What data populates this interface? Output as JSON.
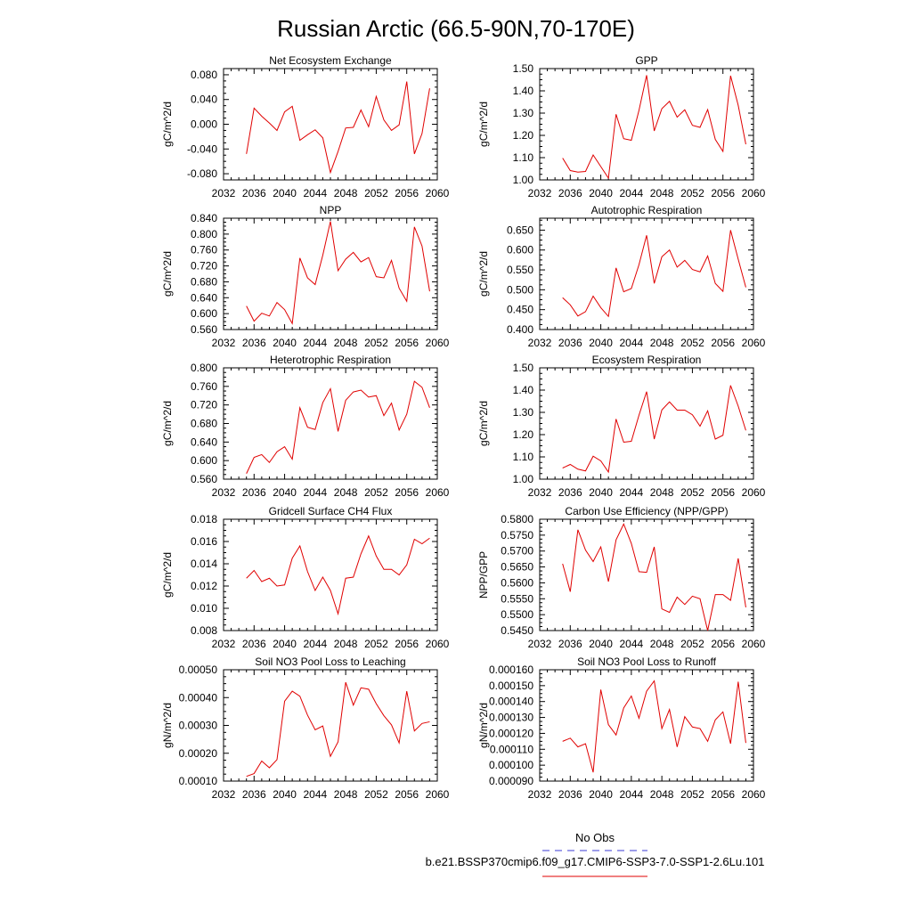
{
  "title": "Russian Arctic (66.5-90N,70-170E)",
  "legend": {
    "obs_label": "No Obs",
    "model_label": "b.e21.BSSP370cmip6.f09_g17.CMIP6-SSP3-7.0-SSP1-2.6Lu.101",
    "obs_color": "#3b3bd6",
    "model_color": "#e00000"
  },
  "chart_data": [
    {
      "type": "line",
      "title": "Net Ecosystem Exchange",
      "ylabel": "gC/m^2/d",
      "xlim": [
        2032,
        2060
      ],
      "xticks": [
        "2032",
        "2036",
        "2040",
        "2044",
        "2048",
        "2052",
        "2056",
        "2060"
      ],
      "ylim": [
        -0.09,
        0.09
      ],
      "yticks": [
        "-0.080",
        "-0.040",
        "0.000",
        "0.040",
        "0.080"
      ],
      "x": [
        2035,
        2036,
        2037,
        2038,
        2039,
        2040,
        2041,
        2042,
        2043,
        2044,
        2045,
        2046,
        2047,
        2048,
        2049,
        2050,
        2051,
        2052,
        2053,
        2054,
        2055,
        2056,
        2057,
        2058,
        2059
      ],
      "series": [
        {
          "values": [
            -0.048,
            0.026,
            0.013,
            0.002,
            -0.01,
            0.02,
            0.029,
            -0.026,
            -0.017,
            -0.009,
            -0.022,
            -0.078,
            -0.044,
            -0.006,
            -0.005,
            0.023,
            -0.004,
            0.045,
            0.007,
            -0.01,
            -0.001,
            0.069,
            -0.048,
            -0.015,
            0.058
          ]
        }
      ]
    },
    {
      "type": "line",
      "title": "GPP",
      "ylabel": "gC/m^2/d",
      "xlim": [
        2032,
        2060
      ],
      "xticks": [
        "2032",
        "2036",
        "2040",
        "2044",
        "2048",
        "2052",
        "2056",
        "2060"
      ],
      "ylim": [
        1.0,
        1.5
      ],
      "yticks": [
        "1.00",
        "1.10",
        "1.20",
        "1.30",
        "1.40",
        "1.50"
      ],
      "x": [
        2035,
        2036,
        2037,
        2038,
        2039,
        2040,
        2041,
        2042,
        2043,
        2044,
        2045,
        2046,
        2047,
        2048,
        2049,
        2050,
        2051,
        2052,
        2053,
        2054,
        2055,
        2056,
        2057,
        2058,
        2059
      ],
      "series": [
        {
          "values": [
            1.098,
            1.042,
            1.035,
            1.038,
            1.112,
            1.06,
            1.008,
            1.295,
            1.185,
            1.178,
            1.312,
            1.47,
            1.22,
            1.32,
            1.353,
            1.282,
            1.315,
            1.245,
            1.236,
            1.316,
            1.182,
            1.128,
            1.468,
            1.335,
            1.16
          ]
        }
      ]
    },
    {
      "type": "line",
      "title": "NPP",
      "ylabel": "gC/m^2/d",
      "xlim": [
        2032,
        2060
      ],
      "xticks": [
        "2032",
        "2036",
        "2040",
        "2044",
        "2048",
        "2052",
        "2056",
        "2060"
      ],
      "ylim": [
        0.56,
        0.84
      ],
      "yticks": [
        "0.560",
        "0.600",
        "0.640",
        "0.680",
        "0.720",
        "0.760",
        "0.800",
        "0.840"
      ],
      "x": [
        2035,
        2036,
        2037,
        2038,
        2039,
        2040,
        2041,
        2042,
        2043,
        2044,
        2045,
        2046,
        2047,
        2048,
        2049,
        2050,
        2051,
        2052,
        2053,
        2054,
        2055,
        2056,
        2057,
        2058,
        2059
      ],
      "series": [
        {
          "values": [
            0.619,
            0.581,
            0.601,
            0.594,
            0.628,
            0.61,
            0.575,
            0.74,
            0.69,
            0.673,
            0.747,
            0.832,
            0.708,
            0.737,
            0.754,
            0.73,
            0.741,
            0.693,
            0.69,
            0.734,
            0.664,
            0.631,
            0.818,
            0.77,
            0.656
          ]
        }
      ]
    },
    {
      "type": "line",
      "title": "Autotrophic Respiration",
      "ylabel": "gC/m^2/d",
      "xlim": [
        2032,
        2060
      ],
      "xticks": [
        "2032",
        "2036",
        "2040",
        "2044",
        "2048",
        "2052",
        "2056",
        "2060"
      ],
      "ylim": [
        0.4,
        0.68
      ],
      "yticks": [
        "0.400",
        "0.450",
        "0.500",
        "0.550",
        "0.600",
        "0.650"
      ],
      "x": [
        2035,
        2036,
        2037,
        2038,
        2039,
        2040,
        2041,
        2042,
        2043,
        2044,
        2045,
        2046,
        2047,
        2048,
        2049,
        2050,
        2051,
        2052,
        2053,
        2054,
        2055,
        2056,
        2057,
        2058,
        2059
      ],
      "series": [
        {
          "values": [
            0.48,
            0.462,
            0.434,
            0.445,
            0.484,
            0.455,
            0.433,
            0.555,
            0.495,
            0.503,
            0.563,
            0.637,
            0.516,
            0.583,
            0.6,
            0.557,
            0.574,
            0.551,
            0.545,
            0.585,
            0.516,
            0.496,
            0.65,
            0.577,
            0.506
          ]
        }
      ]
    },
    {
      "type": "line",
      "title": "Heterotrophic Respiration",
      "ylabel": "gC/m^2/d",
      "xlim": [
        2032,
        2060
      ],
      "xticks": [
        "2032",
        "2036",
        "2040",
        "2044",
        "2048",
        "2052",
        "2056",
        "2060"
      ],
      "ylim": [
        0.56,
        0.8
      ],
      "yticks": [
        "0.560",
        "0.600",
        "0.640",
        "0.680",
        "0.720",
        "0.760",
        "0.800"
      ],
      "x": [
        2035,
        2036,
        2037,
        2038,
        2039,
        2040,
        2041,
        2042,
        2043,
        2044,
        2045,
        2046,
        2047,
        2048,
        2049,
        2050,
        2051,
        2052,
        2053,
        2054,
        2055,
        2056,
        2057,
        2058,
        2059
      ],
      "series": [
        {
          "values": [
            0.572,
            0.607,
            0.613,
            0.596,
            0.619,
            0.63,
            0.603,
            0.714,
            0.672,
            0.667,
            0.725,
            0.755,
            0.663,
            0.73,
            0.748,
            0.752,
            0.737,
            0.74,
            0.697,
            0.724,
            0.666,
            0.7,
            0.771,
            0.758,
            0.714
          ]
        }
      ]
    },
    {
      "type": "line",
      "title": "Ecosystem Respiration",
      "ylabel": "gC/m^2/d",
      "xlim": [
        2032,
        2060
      ],
      "xticks": [
        "2032",
        "2036",
        "2040",
        "2044",
        "2048",
        "2052",
        "2056",
        "2060"
      ],
      "ylim": [
        1.0,
        1.5
      ],
      "yticks": [
        "1.00",
        "1.10",
        "1.20",
        "1.30",
        "1.40",
        "1.50"
      ],
      "x": [
        2035,
        2036,
        2037,
        2038,
        2039,
        2040,
        2041,
        2042,
        2043,
        2044,
        2045,
        2046,
        2047,
        2048,
        2049,
        2050,
        2051,
        2052,
        2053,
        2054,
        2055,
        2056,
        2057,
        2058,
        2059
      ],
      "series": [
        {
          "values": [
            1.05,
            1.066,
            1.045,
            1.037,
            1.103,
            1.082,
            1.032,
            1.27,
            1.166,
            1.17,
            1.287,
            1.393,
            1.18,
            1.311,
            1.347,
            1.31,
            1.31,
            1.289,
            1.238,
            1.307,
            1.18,
            1.197,
            1.421,
            1.328,
            1.219
          ]
        }
      ]
    },
    {
      "type": "line",
      "title": "Gridcell Surface CH4 Flux",
      "ylabel": "gC/m^2/d",
      "xlim": [
        2032,
        2060
      ],
      "xticks": [
        "2032",
        "2036",
        "2040",
        "2044",
        "2048",
        "2052",
        "2056",
        "2060"
      ],
      "ylim": [
        0.008,
        0.018
      ],
      "yticks": [
        "0.008",
        "0.010",
        "0.012",
        "0.014",
        "0.016",
        "0.018"
      ],
      "x": [
        2035,
        2036,
        2037,
        2038,
        2039,
        2040,
        2041,
        2042,
        2043,
        2044,
        2045,
        2046,
        2047,
        2048,
        2049,
        2050,
        2051,
        2052,
        2053,
        2054,
        2055,
        2056,
        2057,
        2058,
        2059
      ],
      "series": [
        {
          "values": [
            0.0127,
            0.0134,
            0.0124,
            0.0127,
            0.012,
            0.0121,
            0.0145,
            0.0156,
            0.0133,
            0.0116,
            0.0128,
            0.0116,
            0.0095,
            0.0127,
            0.0128,
            0.0149,
            0.0165,
            0.0147,
            0.0135,
            0.0135,
            0.013,
            0.0139,
            0.0162,
            0.0158,
            0.0163
          ]
        }
      ]
    },
    {
      "type": "line",
      "title": "Carbon Use Efficiency (NPP/GPP)",
      "ylabel": "NPP/GPP",
      "xlim": [
        2032,
        2060
      ],
      "xticks": [
        "2032",
        "2036",
        "2040",
        "2044",
        "2048",
        "2052",
        "2056",
        "2060"
      ],
      "ylim": [
        0.545,
        0.58
      ],
      "yticks": [
        "0.5450",
        "0.5500",
        "0.5550",
        "0.5600",
        "0.5650",
        "0.5700",
        "0.5750",
        "0.5800"
      ],
      "x": [
        2035,
        2036,
        2037,
        2038,
        2039,
        2040,
        2041,
        2042,
        2043,
        2044,
        2045,
        2046,
        2047,
        2048,
        2049,
        2050,
        2051,
        2052,
        2053,
        2054,
        2055,
        2056,
        2057,
        2058,
        2059
      ],
      "series": [
        {
          "values": [
            0.566,
            0.5572,
            0.5767,
            0.5703,
            0.5667,
            0.5713,
            0.5604,
            0.5735,
            0.5785,
            0.5724,
            0.5635,
            0.5633,
            0.5713,
            0.5518,
            0.5507,
            0.5555,
            0.5532,
            0.5558,
            0.555,
            0.545,
            0.5563,
            0.5563,
            0.5545,
            0.5677,
            0.5523
          ]
        }
      ]
    },
    {
      "type": "line",
      "title": "Soil NO3 Pool Loss to Leaching",
      "ylabel": "gN/m^2/d",
      "xlim": [
        2032,
        2060
      ],
      "xticks": [
        "2032",
        "2036",
        "2040",
        "2044",
        "2048",
        "2052",
        "2056",
        "2060"
      ],
      "ylim": [
        0.0001,
        0.0005
      ],
      "yticks": [
        "0.00010",
        "0.00020",
        "0.00030",
        "0.00040",
        "0.00050"
      ],
      "x": [
        2035,
        2036,
        2037,
        2038,
        2039,
        2040,
        2041,
        2042,
        2043,
        2044,
        2045,
        2046,
        2047,
        2048,
        2049,
        2050,
        2051,
        2052,
        2053,
        2054,
        2055,
        2056,
        2057,
        2058,
        2059
      ],
      "series": [
        {
          "values": [
            0.000117,
            0.000127,
            0.000172,
            0.000148,
            0.000177,
            0.000387,
            0.000423,
            0.000405,
            0.000337,
            0.000284,
            0.000298,
            0.000189,
            0.000241,
            0.000455,
            0.000373,
            0.000435,
            0.00043,
            0.000378,
            0.000335,
            0.000302,
            0.000237,
            0.000423,
            0.00028,
            0.000307,
            0.000313
          ]
        }
      ]
    },
    {
      "type": "line",
      "title": "Soil NO3 Pool Loss to Runoff",
      "ylabel": "gN/m^2/d",
      "xlim": [
        2032,
        2060
      ],
      "xticks": [
        "2032",
        "2036",
        "2040",
        "2044",
        "2048",
        "2052",
        "2056",
        "2060"
      ],
      "ylim": [
        9e-05,
        0.00016
      ],
      "yticks": [
        "0.000090",
        "0.000100",
        "0.000110",
        "0.000120",
        "0.000130",
        "0.000140",
        "0.000150",
        "0.000160"
      ],
      "x": [
        2035,
        2036,
        2037,
        2038,
        2039,
        2040,
        2041,
        2042,
        2043,
        2044,
        2045,
        2046,
        2047,
        2048,
        2049,
        2050,
        2051,
        2052,
        2053,
        2054,
        2055,
        2056,
        2057,
        2058,
        2059
      ],
      "series": [
        {
          "values": [
            0.000115,
            0.000117,
            0.0001115,
            0.0001135,
            9.55e-05,
            0.0001475,
            0.0001255,
            0.000119,
            0.000136,
            0.0001435,
            0.0001295,
            0.0001465,
            0.000153,
            0.000123,
            0.000135,
            0.0001115,
            0.0001305,
            0.000124,
            0.000123,
            0.000115,
            0.0001285,
            0.0001335,
            0.0001135,
            0.0001525,
            0.000114
          ]
        }
      ]
    }
  ]
}
